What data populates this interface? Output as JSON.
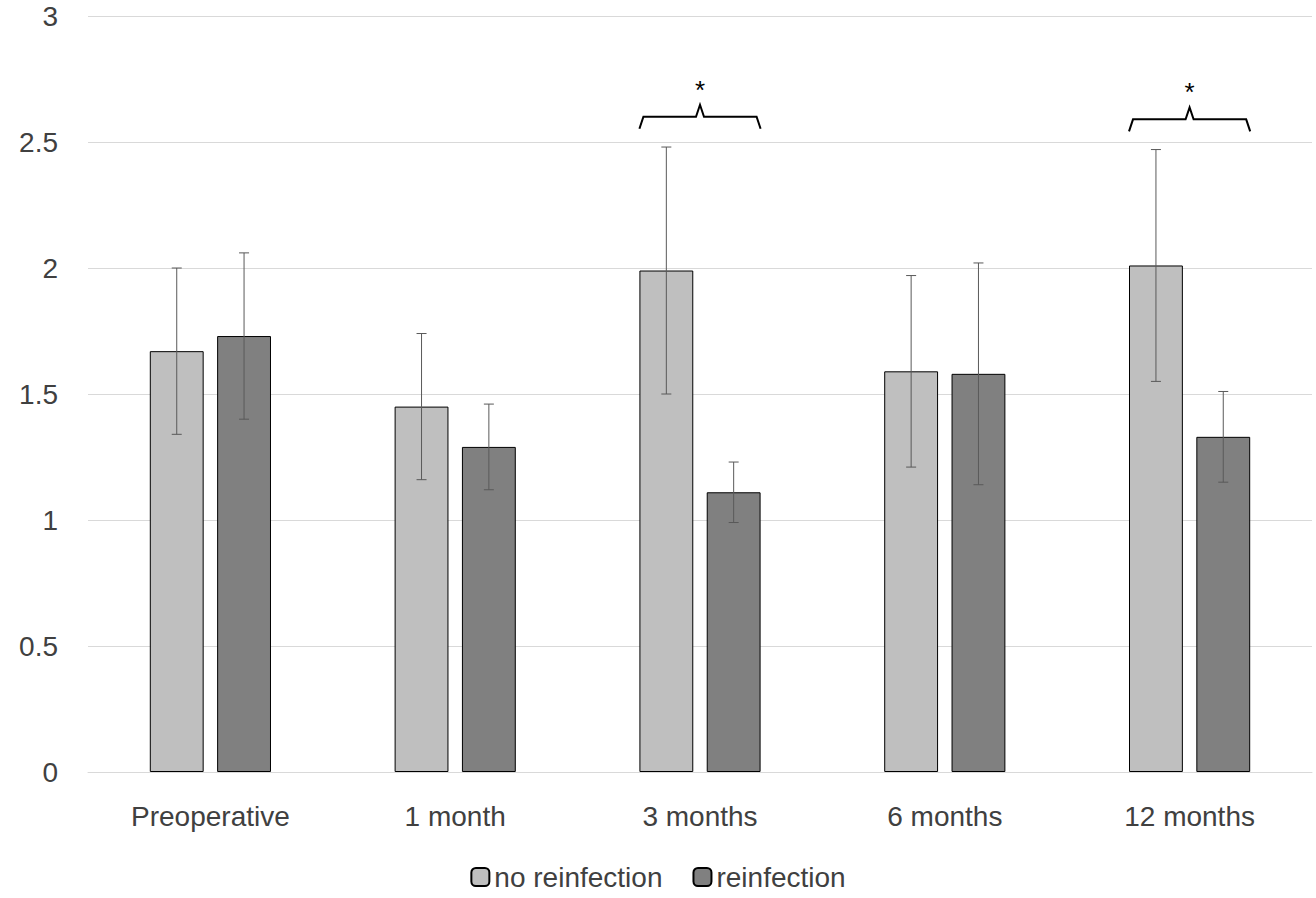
{
  "chart_data": {
    "type": "bar",
    "categories": [
      "Preoperative",
      "1 month",
      "3 months",
      "6 months",
      "12 months"
    ],
    "series": [
      {
        "name": "no reinfection",
        "color": "#bfbfbf",
        "values": [
          1.67,
          1.45,
          1.99,
          1.59,
          2.01
        ],
        "errors": [
          0.33,
          0.29,
          0.49,
          0.38,
          0.46
        ]
      },
      {
        "name": "reinfection",
        "color": "#808080",
        "values": [
          1.73,
          1.29,
          1.11,
          1.58,
          1.33
        ],
        "errors": [
          0.33,
          0.17,
          0.12,
          0.44,
          0.18
        ]
      }
    ],
    "ylim": [
      0,
      3
    ],
    "yticks": [
      0,
      0.5,
      1,
      1.5,
      2,
      2.5,
      3
    ],
    "grid": true,
    "legend": "bottom",
    "annotations": [
      {
        "text": "*",
        "category": "3 months"
      },
      {
        "text": "*",
        "category": "12 months"
      }
    ]
  }
}
